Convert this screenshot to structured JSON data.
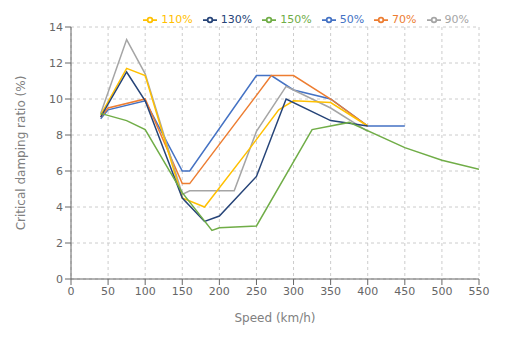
{
  "chart_data": {
    "type": "line",
    "xlabel": "Speed (km/h)",
    "ylabel": "Critical damping ratio (%)",
    "xlim": [
      0,
      550
    ],
    "ylim": [
      0,
      14
    ],
    "xticks": [
      0,
      50,
      100,
      150,
      200,
      250,
      300,
      350,
      400,
      450,
      500,
      550
    ],
    "yticks": [
      0,
      2,
      4,
      6,
      8,
      10,
      12,
      14
    ],
    "grid": true,
    "legend": "upper right",
    "series": [
      {
        "name": "50%",
        "color": "#4472C4",
        "x": [
          40,
          50,
          100,
          150,
          160,
          250,
          270,
          300,
          350,
          400,
          450
        ],
        "values": [
          8.9,
          9.4,
          9.9,
          6.0,
          6.0,
          11.3,
          11.3,
          10.5,
          10.0,
          8.5,
          8.5
        ]
      },
      {
        "name": "70%",
        "color": "#ED7D31",
        "x": [
          40,
          50,
          100,
          150,
          160,
          250,
          270,
          300,
          350,
          400
        ],
        "values": [
          9.0,
          9.5,
          10.0,
          5.3,
          5.3,
          10.2,
          11.3,
          11.3,
          10.0,
          8.5
        ]
      },
      {
        "name": "90%",
        "color": "#A5A5A5",
        "x": [
          40,
          75,
          100,
          150,
          160,
          220,
          250,
          290,
          300,
          350,
          400
        ],
        "values": [
          9.2,
          13.3,
          11.4,
          4.7,
          4.9,
          4.9,
          8.2,
          10.7,
          10.5,
          9.5,
          8.2
        ]
      },
      {
        "name": "110%",
        "color": "#FFC000",
        "x": [
          40,
          75,
          100,
          150,
          180,
          240,
          280,
          300,
          350,
          400
        ],
        "values": [
          9.1,
          11.7,
          11.3,
          4.5,
          4.0,
          7.2,
          9.4,
          9.9,
          9.8,
          8.5
        ]
      },
      {
        "name": "130%",
        "color": "#264478",
        "x": [
          40,
          75,
          100,
          150,
          180,
          200,
          250,
          290,
          350,
          400
        ],
        "values": [
          9.0,
          11.5,
          9.9,
          4.5,
          3.2,
          3.5,
          5.7,
          10.0,
          8.8,
          8.5
        ]
      },
      {
        "name": "150%",
        "color": "#70AD47",
        "x": [
          40,
          75,
          100,
          150,
          190,
          200,
          250,
          325,
          375,
          450,
          500,
          550
        ],
        "values": [
          9.2,
          8.8,
          8.3,
          4.8,
          2.7,
          2.85,
          2.95,
          8.3,
          8.7,
          7.3,
          6.6,
          6.1
        ]
      }
    ]
  }
}
